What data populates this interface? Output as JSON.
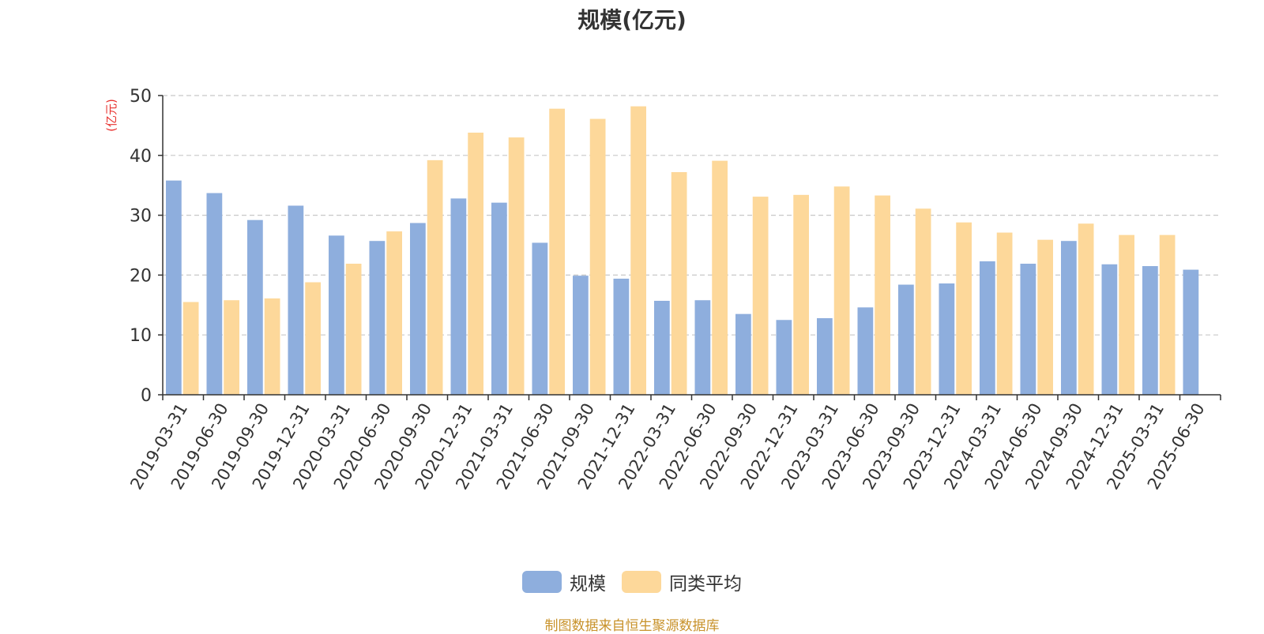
{
  "chart_data": {
    "type": "bar",
    "title": "规模(亿元)",
    "ylabel": "(亿元)",
    "xlabel": "",
    "ylim": [
      0,
      50
    ],
    "yticks": [
      0,
      10,
      20,
      30,
      40,
      50
    ],
    "grid": true,
    "legend_position": "bottom-center",
    "categories": [
      "2019-03-31",
      "2019-06-30",
      "2019-09-30",
      "2019-12-31",
      "2020-03-31",
      "2020-06-30",
      "2020-09-30",
      "2020-12-31",
      "2021-03-31",
      "2021-06-30",
      "2021-09-30",
      "2021-12-31",
      "2022-03-31",
      "2022-06-30",
      "2022-09-30",
      "2022-12-31",
      "2023-03-31",
      "2023-06-30",
      "2023-09-30",
      "2023-12-31",
      "2024-03-31",
      "2024-06-30",
      "2024-09-30",
      "2024-12-31",
      "2025-03-31",
      "2025-06-30"
    ],
    "series": [
      {
        "name": "规模",
        "color": "#8eaedd",
        "values": [
          35.8,
          33.7,
          29.2,
          31.6,
          26.6,
          25.7,
          28.7,
          32.8,
          32.1,
          25.4,
          19.9,
          19.4,
          15.7,
          15.8,
          13.5,
          12.5,
          12.8,
          14.6,
          18.4,
          18.6,
          22.3,
          21.9,
          25.7,
          21.8,
          21.5,
          20.9
        ]
      },
      {
        "name": "同类平均",
        "color": "#fdd89a",
        "values": [
          15.5,
          15.8,
          16.1,
          18.8,
          21.9,
          27.3,
          39.2,
          43.8,
          43.0,
          47.8,
          46.1,
          48.2,
          37.2,
          39.1,
          33.1,
          33.4,
          34.8,
          33.3,
          31.1,
          28.8,
          27.1,
          25.9,
          28.6,
          26.7,
          26.7,
          null
        ]
      }
    ]
  },
  "source_note": "制图数据来自恒生聚源数据库"
}
